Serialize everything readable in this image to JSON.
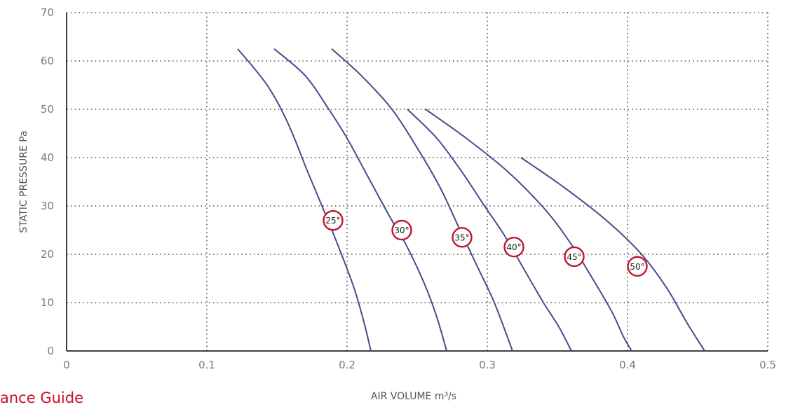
{
  "footer": {
    "text": "ance Guide"
  },
  "colors": {
    "curve": "#4a4a8c",
    "badge_ring": "#c0172d",
    "grid": "#555555",
    "axis": "#000000",
    "tick": "#7a7a7a"
  },
  "chart_data": {
    "type": "line",
    "xlabel": "AIR VOLUME m³/s",
    "ylabel": "STATIC PRESSURE Pa",
    "xlim": [
      0,
      0.5
    ],
    "ylim": [
      0,
      70
    ],
    "x_ticks": [
      "0",
      "0.1",
      "0.2",
      "0.3",
      "0.4",
      "0.5"
    ],
    "y_ticks": [
      "0",
      "10",
      "20",
      "30",
      "40",
      "50",
      "60",
      "70"
    ],
    "grid": true,
    "legend": "none",
    "series": [
      {
        "name": "25°",
        "points": [
          [
            0.122,
            62.5
          ],
          [
            0.143,
            55
          ],
          [
            0.158,
            47
          ],
          [
            0.172,
            37
          ],
          [
            0.185,
            28
          ],
          [
            0.196,
            20
          ],
          [
            0.205,
            13
          ],
          [
            0.212,
            6
          ],
          [
            0.217,
            0
          ]
        ],
        "label_at": [
          0.19,
          27
        ]
      },
      {
        "name": "30°",
        "points": [
          [
            0.148,
            62.5
          ],
          [
            0.17,
            57
          ],
          [
            0.187,
            50
          ],
          [
            0.2,
            44
          ],
          [
            0.215,
            36
          ],
          [
            0.23,
            28
          ],
          [
            0.242,
            22
          ],
          [
            0.255,
            14
          ],
          [
            0.264,
            7
          ],
          [
            0.271,
            0
          ]
        ],
        "label_at": [
          0.239,
          25
        ]
      },
      {
        "name": "35°",
        "points": [
          [
            0.189,
            62.5
          ],
          [
            0.21,
            57
          ],
          [
            0.232,
            50
          ],
          [
            0.25,
            42
          ],
          [
            0.266,
            34
          ],
          [
            0.279,
            26
          ],
          [
            0.292,
            18
          ],
          [
            0.305,
            10
          ],
          [
            0.318,
            0
          ]
        ],
        "label_at": [
          0.282,
          23.5
        ]
      },
      {
        "name": "40°",
        "points": [
          [
            0.243,
            50
          ],
          [
            0.264,
            44
          ],
          [
            0.282,
            37
          ],
          [
            0.298,
            30
          ],
          [
            0.312,
            24
          ],
          [
            0.326,
            17
          ],
          [
            0.34,
            10
          ],
          [
            0.351,
            5
          ],
          [
            0.36,
            0
          ]
        ],
        "label_at": [
          0.319,
          21.5
        ]
      },
      {
        "name": "45°",
        "points": [
          [
            0.256,
            50
          ],
          [
            0.285,
            44
          ],
          [
            0.315,
            37
          ],
          [
            0.342,
            29
          ],
          [
            0.36,
            22
          ],
          [
            0.375,
            15
          ],
          [
            0.389,
            8
          ],
          [
            0.397,
            3
          ],
          [
            0.403,
            0
          ]
        ],
        "label_at": [
          0.362,
          19.5
        ]
      },
      {
        "name": "50°",
        "points": [
          [
            0.324,
            40
          ],
          [
            0.354,
            34
          ],
          [
            0.385,
            27
          ],
          [
            0.41,
            20
          ],
          [
            0.428,
            13
          ],
          [
            0.442,
            6
          ],
          [
            0.455,
            0
          ]
        ],
        "label_at": [
          0.407,
          17.5
        ]
      }
    ]
  }
}
